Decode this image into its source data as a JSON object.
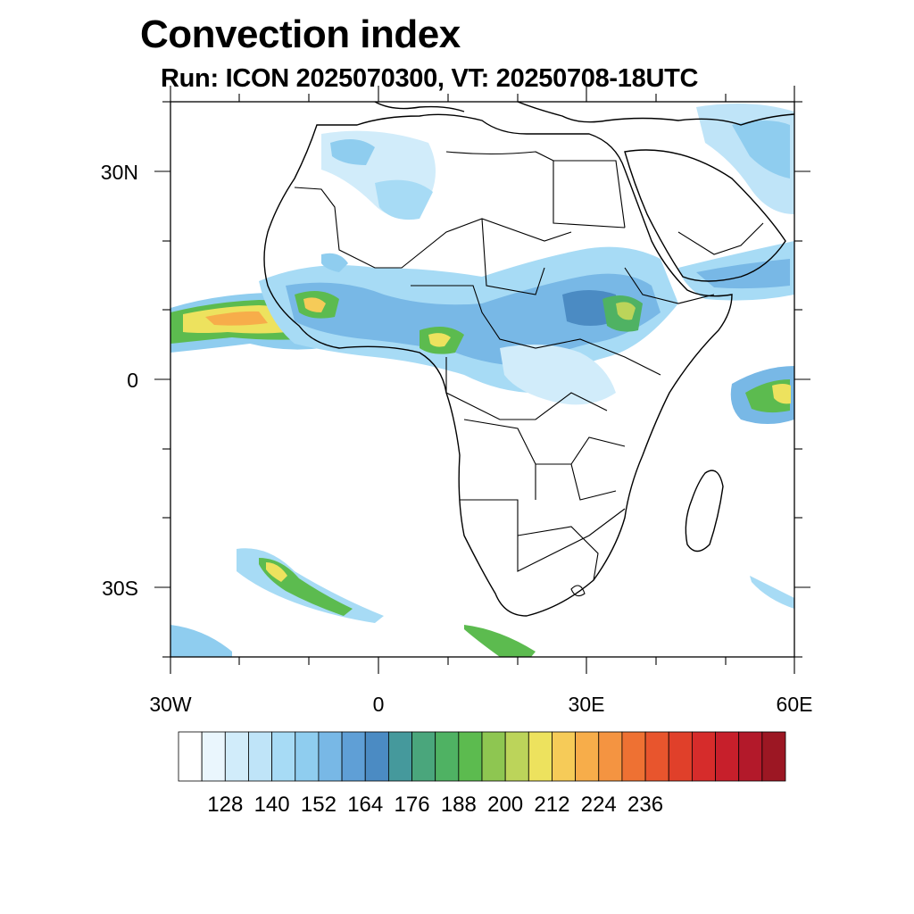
{
  "title": "Convection index",
  "subtitle": "Run: ICON 2025070300,  VT: 20250708-18UTC",
  "lat_labels": [
    "30N",
    "0",
    "30S"
  ],
  "lon_labels": [
    "30W",
    "0",
    "30E",
    "60E"
  ],
  "colorbar": {
    "labels": [
      "128",
      "140",
      "152",
      "164",
      "176",
      "188",
      "200",
      "212",
      "224",
      "236"
    ],
    "colors": [
      "#ffffff",
      "#eaf6fd",
      "#d1ecfa",
      "#bfe4f8",
      "#a7dbf5",
      "#8fcdef",
      "#78b8e6",
      "#5f9fd6",
      "#4b8bc3",
      "#45999c",
      "#4aa67c",
      "#4fb263",
      "#5cbb4f",
      "#8ec651",
      "#bcd45a",
      "#ede25e",
      "#f6cb58",
      "#f7ad4a",
      "#f49441",
      "#ee7133",
      "#e8552d",
      "#e0402a",
      "#d62c2b",
      "#c71f2b",
      "#b3192a",
      "#9c1723"
    ]
  }
}
